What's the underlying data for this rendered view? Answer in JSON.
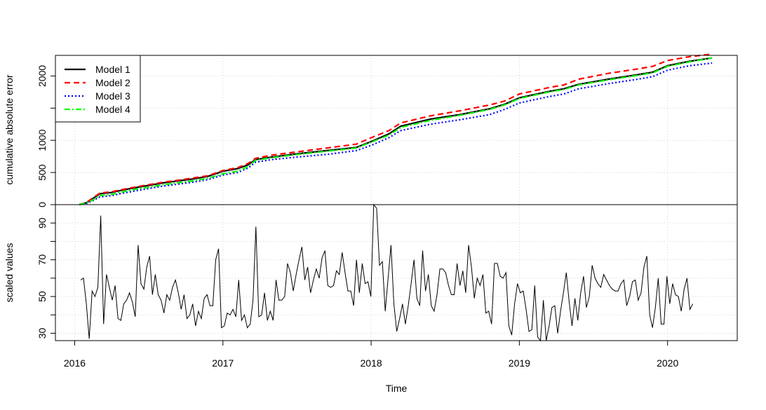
{
  "chart_data": [
    {
      "type": "line",
      "ylabel": "cumulative absolute error",
      "ylim": [
        0,
        2320
      ],
      "xlim": [
        2015.87,
        2020.47
      ],
      "yticks": [
        0,
        500,
        1000,
        2000
      ],
      "ytick_labels": [
        "0",
        "500",
        "1000",
        "2000"
      ],
      "yticks_unlabeled": [
        1500
      ],
      "grid": true,
      "legend_position": "top-left",
      "series": [
        {
          "name": "Model 1",
          "color": "#000000",
          "dash": "solid",
          "x": [
            2016.03,
            2016.08,
            2016.12,
            2016.17,
            2016.25,
            2016.32,
            2016.4,
            2016.5,
            2016.6,
            2016.7,
            2016.8,
            2016.9,
            2017.0,
            2017.1,
            2017.17,
            2017.22,
            2017.33,
            2017.5,
            2017.7,
            2017.9,
            2018.0,
            2018.12,
            2018.2,
            2018.4,
            2018.6,
            2018.8,
            2018.9,
            2019.0,
            2019.2,
            2019.3,
            2019.4,
            2019.6,
            2019.8,
            2019.9,
            2020.0,
            2020.15,
            2020.3
          ],
          "y": [
            0,
            30,
            90,
            170,
            190,
            225,
            260,
            300,
            340,
            370,
            400,
            440,
            520,
            560,
            620,
            700,
            740,
            790,
            840,
            890,
            980,
            1100,
            1220,
            1330,
            1400,
            1490,
            1560,
            1660,
            1760,
            1800,
            1870,
            1950,
            2020,
            2060,
            2160,
            2230,
            2280
          ]
        },
        {
          "name": "Model 2",
          "color": "#ff0000",
          "dash": "8,5",
          "x": [
            2016.03,
            2016.08,
            2016.12,
            2016.17,
            2016.25,
            2016.32,
            2016.4,
            2016.5,
            2016.6,
            2016.7,
            2016.8,
            2016.9,
            2017.0,
            2017.1,
            2017.17,
            2017.22,
            2017.33,
            2017.5,
            2017.7,
            2017.9,
            2018.0,
            2018.12,
            2018.2,
            2018.4,
            2018.6,
            2018.8,
            2018.9,
            2019.0,
            2019.2,
            2019.3,
            2019.4,
            2019.6,
            2019.8,
            2019.9,
            2020.0,
            2020.15,
            2020.3
          ],
          "y": [
            0,
            35,
            100,
            180,
            200,
            235,
            270,
            310,
            350,
            380,
            415,
            450,
            530,
            575,
            640,
            720,
            770,
            820,
            880,
            940,
            1040,
            1150,
            1270,
            1380,
            1460,
            1550,
            1610,
            1720,
            1820,
            1860,
            1950,
            2040,
            2110,
            2150,
            2240,
            2300,
            2340
          ]
        },
        {
          "name": "Model 3",
          "color": "#0000ff",
          "dash": "2,3",
          "x": [
            2016.03,
            2016.08,
            2016.12,
            2016.17,
            2016.25,
            2016.32,
            2016.4,
            2016.5,
            2016.6,
            2016.7,
            2016.8,
            2016.9,
            2017.0,
            2017.1,
            2017.17,
            2017.22,
            2017.33,
            2017.5,
            2017.7,
            2017.9,
            2018.0,
            2018.12,
            2018.2,
            2018.4,
            2018.6,
            2018.8,
            2018.9,
            2019.0,
            2019.2,
            2019.3,
            2019.4,
            2019.6,
            2019.8,
            2019.9,
            2020.0,
            2020.15,
            2020.3
          ],
          "y": [
            0,
            20,
            60,
            120,
            140,
            175,
            210,
            250,
            290,
            320,
            350,
            390,
            460,
            500,
            570,
            660,
            700,
            740,
            780,
            840,
            920,
            1040,
            1150,
            1250,
            1320,
            1400,
            1480,
            1580,
            1680,
            1720,
            1800,
            1880,
            1950,
            1990,
            2090,
            2160,
            2200
          ]
        },
        {
          "name": "Model 4",
          "color": "#00ff00",
          "dash": "8,3,2,3",
          "x": [
            2016.03,
            2016.08,
            2016.12,
            2016.17,
            2016.25,
            2016.32,
            2016.4,
            2016.5,
            2016.6,
            2016.7,
            2016.8,
            2016.9,
            2017.0,
            2017.1,
            2017.17,
            2017.22,
            2017.33,
            2017.5,
            2017.7,
            2017.9,
            2018.0,
            2018.12,
            2018.2,
            2018.4,
            2018.6,
            2018.8,
            2018.9,
            2019.0,
            2019.2,
            2019.3,
            2019.4,
            2019.6,
            2019.8,
            2019.9,
            2020.0,
            2020.15,
            2020.3
          ],
          "y": [
            0,
            25,
            70,
            140,
            160,
            195,
            235,
            270,
            310,
            340,
            370,
            410,
            480,
            520,
            590,
            690,
            730,
            780,
            830,
            880,
            970,
            1080,
            1200,
            1310,
            1390,
            1480,
            1550,
            1650,
            1750,
            1790,
            1860,
            1940,
            2010,
            2050,
            2150,
            2220,
            2280
          ]
        }
      ]
    },
    {
      "type": "line",
      "ylabel": "scaled values",
      "xlabel": "Time",
      "ylim": [
        26,
        100
      ],
      "xlim": [
        2015.87,
        2020.47
      ],
      "yticks": [
        30,
        50,
        70,
        90
      ],
      "ytick_labels": [
        "30",
        "50",
        "70",
        "90"
      ],
      "yticks_unlabeled": [
        40,
        60,
        80
      ],
      "xticks": [
        2016,
        2017,
        2018,
        2019,
        2020
      ],
      "xtick_labels": [
        "2016",
        "2017",
        "2018",
        "2019",
        "2020"
      ],
      "grid": true,
      "series": [
        {
          "name": "",
          "color": "#000000",
          "x_start": 2016.04,
          "x_end": 2020.17,
          "values": [
            59,
            60,
            46,
            27,
            53,
            50,
            55,
            94,
            35,
            62,
            55,
            48,
            56,
            38,
            37,
            46,
            48,
            52,
            47,
            39,
            78,
            57,
            54,
            66,
            72,
            51,
            62,
            51,
            48,
            41,
            51,
            48,
            55,
            59,
            52,
            43,
            51,
            38,
            40,
            46,
            34,
            42,
            38,
            49,
            51,
            45,
            45,
            70,
            76,
            33,
            34,
            41,
            40,
            43,
            39,
            59,
            37,
            40,
            33,
            35,
            48,
            88,
            39,
            40,
            52,
            37,
            42,
            37,
            59,
            48,
            48,
            50,
            68,
            63,
            53,
            62,
            70,
            77,
            59,
            66,
            52,
            59,
            65,
            60,
            71,
            75,
            56,
            55,
            56,
            64,
            62,
            74,
            63,
            53,
            53,
            45,
            70,
            52,
            68,
            57,
            58,
            50,
            100,
            98,
            67,
            69,
            42,
            60,
            78,
            46,
            31,
            38,
            46,
            35,
            45,
            57,
            70,
            49,
            45,
            75,
            53,
            62,
            45,
            42,
            51,
            65,
            65,
            63,
            56,
            51,
            51,
            68,
            56,
            64,
            52,
            78,
            66,
            49,
            60,
            56,
            62,
            41,
            42,
            35,
            68,
            68,
            61,
            60,
            63,
            34,
            29,
            46,
            57,
            52,
            53,
            43,
            31,
            32,
            56,
            28,
            26,
            48,
            26,
            34,
            44,
            45,
            30,
            42,
            52,
            63,
            47,
            34,
            49,
            37,
            52,
            61,
            44,
            50,
            67,
            60,
            57,
            55,
            62,
            59,
            56,
            54,
            53,
            53,
            57,
            59,
            45,
            50,
            58,
            59,
            48,
            52,
            66,
            72,
            40,
            33,
            44,
            60,
            35,
            35,
            61,
            46,
            57,
            51,
            50,
            42,
            54,
            60,
            43,
            46
          ]
        }
      ]
    }
  ]
}
